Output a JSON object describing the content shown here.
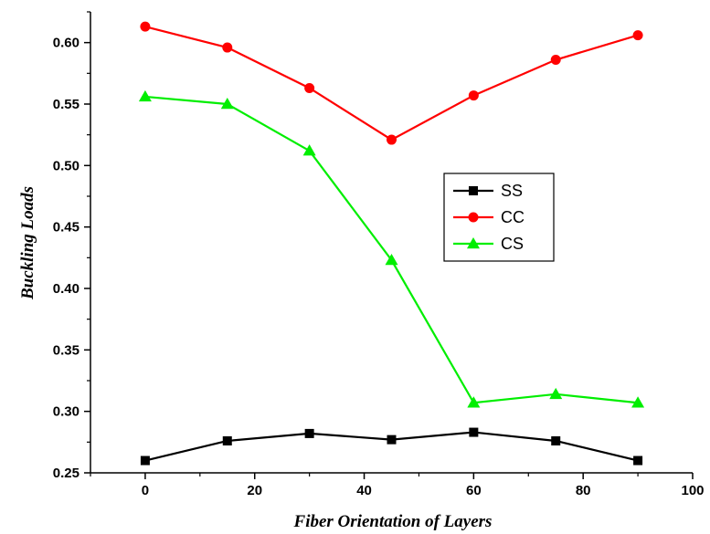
{
  "chart_data": {
    "type": "line",
    "title": "",
    "xlabel": "Fiber Orientation of Layers",
    "ylabel": "Buckling Loads",
    "xlim": [
      -10,
      100
    ],
    "ylim": [
      0.25,
      0.625
    ],
    "xticks": [
      0,
      20,
      40,
      60,
      80,
      100
    ],
    "yticks": [
      0.25,
      0.3,
      0.35,
      0.4,
      0.45,
      0.5,
      0.55,
      0.6
    ],
    "ytick_labels": [
      "0.25",
      "0.30",
      "0.35",
      "0.40",
      "0.45",
      "0.50",
      "0.55",
      "0.60"
    ],
    "grid": false,
    "legend_position": "center-right",
    "x": [
      0,
      15,
      30,
      45,
      60,
      75,
      90
    ],
    "series": [
      {
        "name": "SS",
        "color": "#000000",
        "marker": "square",
        "values": [
          0.26,
          0.276,
          0.282,
          0.277,
          0.283,
          0.276,
          0.26
        ]
      },
      {
        "name": "CC",
        "color": "#ff0000",
        "marker": "circle",
        "values": [
          0.613,
          0.596,
          0.563,
          0.521,
          0.557,
          0.586,
          0.606
        ]
      },
      {
        "name": "CS",
        "color": "#00ee00",
        "marker": "triangle",
        "values": [
          0.556,
          0.55,
          0.512,
          0.423,
          0.307,
          0.314,
          0.307
        ]
      }
    ]
  }
}
